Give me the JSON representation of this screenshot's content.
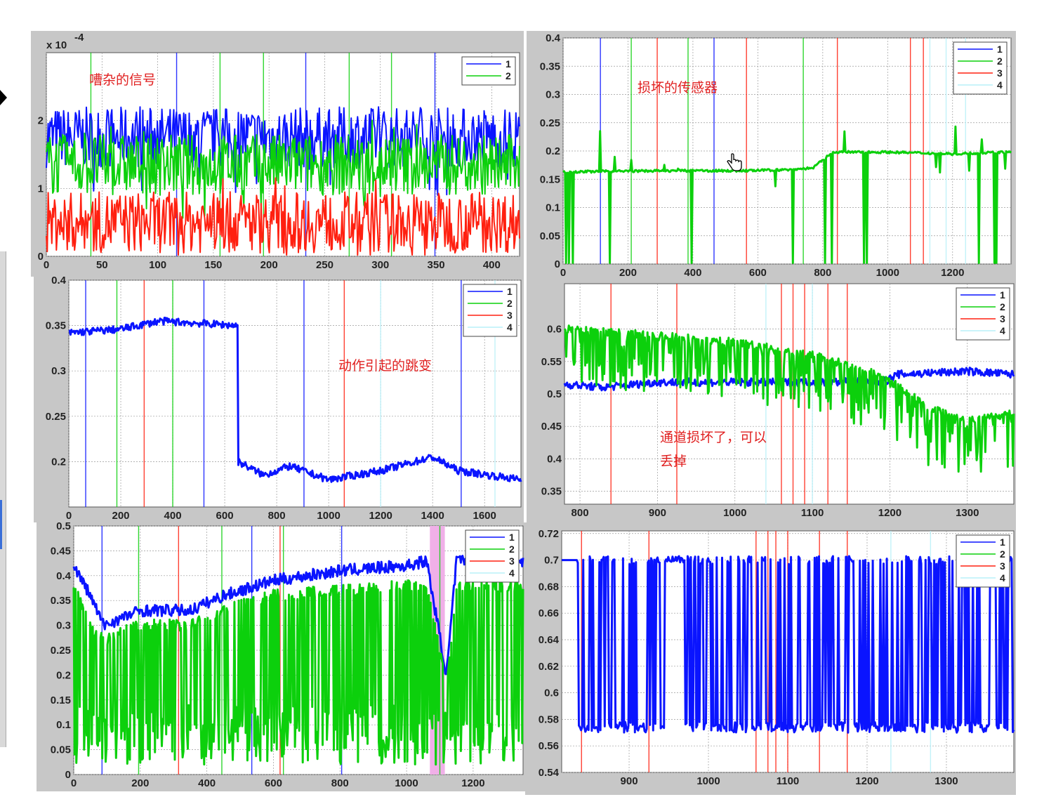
{
  "annotations": {
    "noisy": "嘈杂的信号",
    "broken": "损坏的传感器",
    "jump": "动作引起的跳变",
    "drop1": "通道损坏了，可以",
    "drop2": "丢掉"
  },
  "colors": {
    "1": "#0a14ff",
    "2": "#0cd00c",
    "3": "#ff2010",
    "4": "#b8f0f8",
    "shade": "#f0b0e8"
  },
  "chart_data": [
    {
      "id": "p1",
      "type": "line",
      "title": "",
      "xlabel": "",
      "ylabel": "",
      "y_exponent_label": "x 10",
      "y_exponent": "-4",
      "xlim": [
        0,
        425
      ],
      "ylim": [
        0,
        3
      ],
      "xticks": [
        "0",
        "50",
        "100",
        "150",
        "200",
        "250",
        "300",
        "350",
        "400"
      ],
      "yticks": [
        "0",
        "1",
        "2"
      ],
      "legend": [
        "1",
        "2"
      ],
      "vlines": {
        "1": [
          117,
          233,
          349
        ],
        "2": [
          40,
          156,
          195,
          272,
          310
        ]
      },
      "series": [
        {
          "name": "1",
          "level": 1.75,
          "amp": 0.45
        },
        {
          "name": "2",
          "level": 1.35,
          "amp": 0.45
        },
        {
          "name": "3",
          "level": 0.5,
          "amp": 0.45
        }
      ]
    },
    {
      "id": "p2",
      "type": "line",
      "title": "",
      "xlabel": "",
      "ylabel": "",
      "xlim": [
        0,
        1380
      ],
      "ylim": [
        0,
        0.4
      ],
      "xticks": [
        "0",
        "200",
        "400",
        "600",
        "800",
        "1000",
        "1200"
      ],
      "yticks": [
        "0",
        "0.05",
        "0.1",
        "0.15",
        "0.2",
        "0.25",
        "0.3",
        "0.35",
        "0.4"
      ],
      "legend": [
        "1",
        "2",
        "3",
        "4"
      ],
      "vlines": {
        "1": [
          115,
          465
        ],
        "2": [
          210,
          385,
          740
        ],
        "3": [
          290,
          565,
          845,
          1070,
          1110
        ],
        "4": [
          1130,
          1180,
          1240
        ]
      },
      "series": [
        {
          "name": "2",
          "segments": [
            [
              0,
              0.163
            ],
            [
              300,
              0.165
            ],
            [
              560,
              0.165
            ],
            [
              700,
              0.167
            ],
            [
              770,
              0.17
            ],
            [
              830,
              0.198
            ],
            [
              1000,
              0.198
            ],
            [
              1200,
              0.195
            ],
            [
              1380,
              0.198
            ]
          ]
        }
      ]
    },
    {
      "id": "p3",
      "type": "line",
      "title": "",
      "xlabel": "",
      "ylabel": "",
      "xlim": [
        0,
        1740
      ],
      "ylim": [
        0.15,
        0.4
      ],
      "xticks": [
        "0",
        "200",
        "400",
        "600",
        "800",
        "1000",
        "1200",
        "1400",
        "1600"
      ],
      "yticks": [
        "0.2",
        "0.25",
        "0.3",
        "0.35",
        "0.4"
      ],
      "legend": [
        "1",
        "2",
        "3",
        "4"
      ],
      "vlines": {
        "1": [
          65,
          520,
          905,
          1510
        ],
        "2": [
          185,
          400
        ],
        "3": [
          290,
          1060
        ],
        "4": [
          1200,
          1640
        ]
      },
      "series": [
        {
          "name": "1",
          "segments": [
            [
              0,
              0.342
            ],
            [
              200,
              0.346
            ],
            [
              350,
              0.355
            ],
            [
              650,
              0.35
            ],
            [
              652,
              0.2
            ],
            [
              750,
              0.185
            ],
            [
              850,
              0.195
            ],
            [
              1000,
              0.18
            ],
            [
              1200,
              0.19
            ],
            [
              1400,
              0.205
            ],
            [
              1500,
              0.19
            ],
            [
              1740,
              0.18
            ]
          ]
        }
      ]
    },
    {
      "id": "p4",
      "type": "line",
      "title": "",
      "xlabel": "",
      "ylabel": "",
      "xlim": [
        780,
        1360
      ],
      "ylim": [
        0.33,
        0.67
      ],
      "xticks": [
        "800",
        "900",
        "1000",
        "1100",
        "1200",
        "1300"
      ],
      "yticks": [
        "0.35",
        "0.4",
        "0.45",
        "0.5",
        "0.55",
        "0.6"
      ],
      "legend": [
        "1",
        "2",
        "3",
        "4"
      ],
      "vlines": {
        "3": [
          840,
          925,
          1060,
          1075,
          1090,
          1120,
          1145
        ],
        "4": [
          1040,
          1100
        ]
      },
      "series": [
        {
          "name": "1",
          "segments": [
            [
              780,
              0.515
            ],
            [
              830,
              0.51
            ],
            [
              900,
              0.518
            ],
            [
              1000,
              0.518
            ],
            [
              1100,
              0.518
            ],
            [
              1195,
              0.52
            ],
            [
              1210,
              0.53
            ],
            [
              1300,
              0.535
            ],
            [
              1360,
              0.53
            ]
          ]
        },
        {
          "name": "2",
          "segments": [
            [
              780,
              0.6
            ],
            [
              900,
              0.59
            ],
            [
              1000,
              0.58
            ],
            [
              1100,
              0.56
            ],
            [
              1190,
              0.53
            ],
            [
              1200,
              0.52
            ],
            [
              1250,
              0.48
            ],
            [
              1300,
              0.46
            ],
            [
              1360,
              0.47
            ]
          ]
        }
      ]
    },
    {
      "id": "p5",
      "type": "line",
      "title": "",
      "xlabel": "",
      "ylabel": "",
      "xlim": [
        0,
        1350
      ],
      "ylim": [
        0,
        0.5
      ],
      "xticks": [
        "0",
        "200",
        "400",
        "600",
        "800",
        "1000",
        "1200"
      ],
      "yticks": [
        "0",
        "0.05",
        "0.1",
        "0.15",
        "0.2",
        "0.25",
        "0.3",
        "0.35",
        "0.4",
        "0.45",
        "0.5"
      ],
      "legend": [
        "1",
        "2",
        "3",
        "4"
      ],
      "vlines": {
        "1": [
          85,
          535,
          805
        ],
        "2": [
          195,
          445,
          630,
          1100
        ],
        "3": [
          315,
          620
        ]
      },
      "shade": [
        1070,
        1115
      ],
      "series": [
        {
          "name": "1",
          "segments": [
            [
              0,
              0.42
            ],
            [
              50,
              0.36
            ],
            [
              90,
              0.3
            ],
            [
              200,
              0.33
            ],
            [
              350,
              0.33
            ],
            [
              450,
              0.36
            ],
            [
              600,
              0.39
            ],
            [
              800,
              0.41
            ],
            [
              1000,
              0.42
            ],
            [
              1060,
              0.43
            ],
            [
              1120,
              0.2
            ],
            [
              1150,
              0.43
            ],
            [
              1350,
              0.43
            ]
          ]
        },
        {
          "name": "2",
          "segments": [
            [
              0,
              0.38
            ],
            [
              50,
              0.3
            ],
            [
              90,
              0.27
            ],
            [
              200,
              0.3
            ],
            [
              350,
              0.3
            ],
            [
              450,
              0.33
            ],
            [
              600,
              0.36
            ],
            [
              800,
              0.37
            ],
            [
              1000,
              0.38
            ],
            [
              1060,
              0.38
            ],
            [
              1120,
              0.18
            ],
            [
              1150,
              0.38
            ],
            [
              1350,
              0.38
            ]
          ]
        }
      ]
    },
    {
      "id": "p6",
      "type": "line",
      "title": "",
      "xlabel": "",
      "ylabel": "",
      "xlim": [
        815,
        1385
      ],
      "ylim": [
        0.54,
        0.722
      ],
      "xticks": [
        "900",
        "1000",
        "1100",
        "1200",
        "1300"
      ],
      "yticks": [
        "0.54",
        "0.56",
        "0.58",
        "0.6",
        "0.62",
        "0.64",
        "0.66",
        "0.68",
        "0.7",
        "0.72"
      ],
      "legend": [
        "1",
        "2",
        "3",
        "4"
      ],
      "vlines": {
        "3": [
          840,
          925,
          1060,
          1075,
          1085,
          1100,
          1140,
          1175
        ],
        "4": [
          1230,
          1280
        ]
      },
      "series": [
        {
          "name": "1",
          "top": 0.7,
          "bottom": 0.57
        }
      ]
    }
  ]
}
